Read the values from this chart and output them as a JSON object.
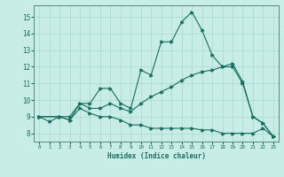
{
  "xlabel": "Humidex (Indice chaleur)",
  "xlim": [
    -0.5,
    23.5
  ],
  "ylim": [
    7.5,
    15.7
  ],
  "yticks": [
    8,
    9,
    10,
    11,
    12,
    13,
    14,
    15
  ],
  "xticks": [
    0,
    1,
    2,
    3,
    4,
    5,
    6,
    7,
    8,
    9,
    10,
    11,
    12,
    13,
    14,
    15,
    16,
    17,
    18,
    19,
    20,
    21,
    22,
    23
  ],
  "bg_color": "#c8ece6",
  "grid_color": "#a8d8d0",
  "line_color": "#1a6e60",
  "line1_x": [
    0,
    1,
    2,
    3,
    4,
    5,
    6,
    7,
    8,
    9,
    10,
    11,
    12,
    13,
    14,
    15,
    16,
    17,
    18,
    19,
    20,
    21,
    22,
    23
  ],
  "line1_y": [
    9.0,
    8.7,
    9.0,
    8.8,
    9.8,
    9.8,
    10.7,
    10.7,
    9.8,
    9.5,
    11.8,
    11.5,
    13.5,
    13.5,
    14.7,
    15.3,
    14.2,
    12.7,
    12.0,
    12.2,
    11.1,
    9.0,
    8.6,
    7.8
  ],
  "line2_x": [
    0,
    2,
    3,
    4,
    5,
    6,
    7,
    8,
    9,
    10,
    11,
    12,
    13,
    14,
    15,
    16,
    17,
    18,
    19,
    20,
    21,
    22,
    23
  ],
  "line2_y": [
    9.0,
    9.0,
    9.0,
    9.8,
    9.5,
    9.5,
    9.8,
    9.5,
    9.3,
    9.8,
    10.2,
    10.5,
    10.8,
    11.2,
    11.5,
    11.7,
    11.8,
    12.0,
    12.0,
    11.0,
    9.0,
    8.6,
    7.8
  ],
  "line3_x": [
    0,
    2,
    3,
    4,
    5,
    6,
    7,
    8,
    9,
    10,
    11,
    12,
    13,
    14,
    15,
    16,
    17,
    18,
    19,
    20,
    21,
    22,
    23
  ],
  "line3_y": [
    9.0,
    9.0,
    8.8,
    9.5,
    9.2,
    9.0,
    9.0,
    8.8,
    8.5,
    8.5,
    8.3,
    8.3,
    8.3,
    8.3,
    8.3,
    8.2,
    8.2,
    8.0,
    8.0,
    8.0,
    8.0,
    8.3,
    7.8
  ]
}
